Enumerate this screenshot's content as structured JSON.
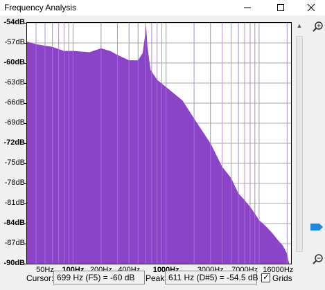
{
  "window": {
    "title": "Frequency Analysis",
    "minimize_icon": "minimize-icon",
    "maximize_icon": "maximize-icon",
    "close_icon": "close-icon"
  },
  "colors": {
    "spectrum_fill": "#8b43c8",
    "grid": "#a8a8a8",
    "zoom_thumb": "#1e88e5"
  },
  "y_axis": {
    "labels": [
      "-54dB",
      "-57dB",
      "-60dB",
      "-63dB",
      "-66dB",
      "-69dB",
      "-72dB",
      "-75dB",
      "-78dB",
      "-81dB",
      "-84dB",
      "-87dB",
      "-90dB"
    ],
    "bold": [
      "-54dB",
      "-60dB",
      "-72dB",
      "-84dB",
      "-90dB"
    ],
    "range_db": [
      -90,
      -54
    ]
  },
  "x_axis": {
    "labels": [
      {
        "text": "50Hz",
        "hz": 50
      },
      {
        "text": "100Hz",
        "hz": 100,
        "bold": true
      },
      {
        "text": "200Hz",
        "hz": 200
      },
      {
        "text": "400Hz",
        "hz": 400
      },
      {
        "text": "1000Hz",
        "hz": 1000,
        "bold": true
      },
      {
        "text": "3000Hz",
        "hz": 3000
      },
      {
        "text": "7000Hz",
        "hz": 7000
      },
      {
        "text": "16000Hz",
        "hz": 16000
      }
    ],
    "range_hz": [
      32,
      22050
    ],
    "scale": "log"
  },
  "chart_data": {
    "type": "area",
    "x": [
      32,
      40,
      60,
      80,
      100,
      150,
      200,
      250,
      300,
      400,
      500,
      560,
      590,
      611,
      630,
      680,
      800,
      1000,
      1500,
      2000,
      3000,
      4000,
      5000,
      6000,
      7000,
      8000,
      9000,
      10000,
      11000,
      12000,
      14000,
      16000,
      18000,
      20000,
      21000
    ],
    "y": [
      -56.8,
      -57.2,
      -57.6,
      -58.2,
      -58.2,
      -58.4,
      -57.8,
      -58.2,
      -58.8,
      -59.6,
      -59.6,
      -58.5,
      -56.2,
      -54.5,
      -57.5,
      -61.0,
      -62.5,
      -63.6,
      -65.6,
      -68.3,
      -72.0,
      -75.5,
      -77.2,
      -79.5,
      -80.5,
      -81.5,
      -82.5,
      -83.5,
      -84.0,
      -84.5,
      -85.5,
      -86.5,
      -87.3,
      -88.5,
      -90.0
    ],
    "xlim": [
      32,
      22050
    ],
    "ylim": [
      -90,
      -54
    ],
    "grid": true
  },
  "status": {
    "cursor_label": "Cursor:",
    "cursor_value": "699 Hz (F5) = -60 dB",
    "peak_label": "Peak:",
    "peak_value": "611 Hz (D#5) = -54.5 dB",
    "grids_label": "Grids",
    "grids_checked": true
  },
  "zoom": {
    "zoom_in_icon": "zoom-in-icon",
    "zoom_out_icon": "zoom-out-icon",
    "level": 0.88
  }
}
